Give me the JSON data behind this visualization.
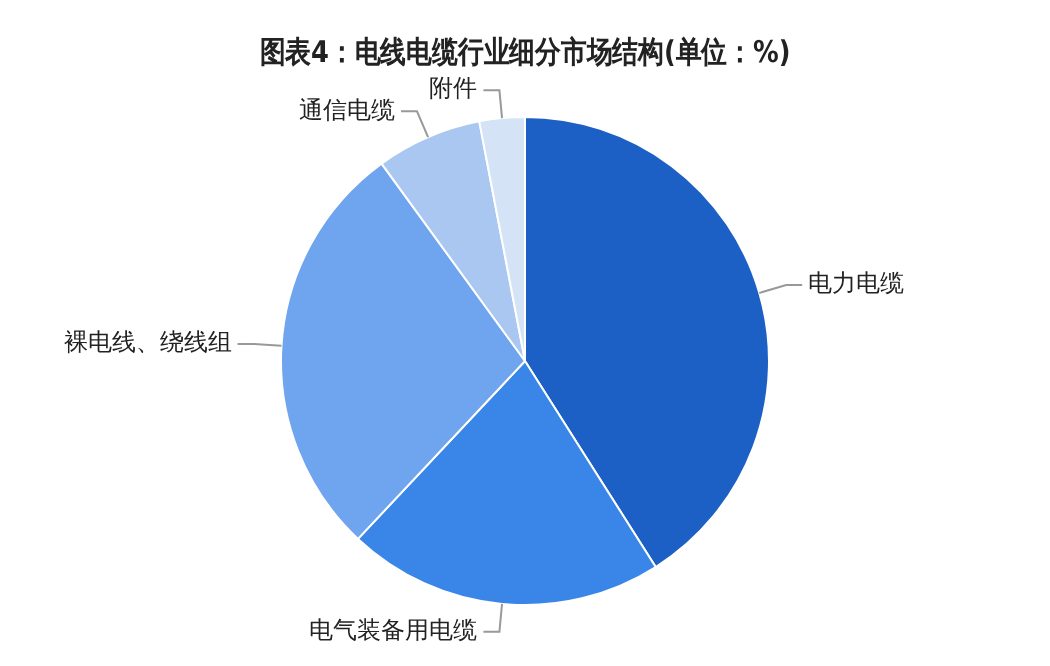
{
  "chart_data": {
    "type": "pie",
    "title": "图表4：电线电缆行业细分市场结构(单位：%)",
    "categories": [
      "电力电缆",
      "电气装备用电缆",
      "裸电线、绕线组",
      "通信电缆",
      "附件"
    ],
    "values": [
      41,
      21,
      28,
      7,
      3
    ],
    "colors": [
      "#1c5fc5",
      "#3a86e8",
      "#6fa4ee",
      "#a9c7f0",
      "#d4e3f5"
    ]
  }
}
